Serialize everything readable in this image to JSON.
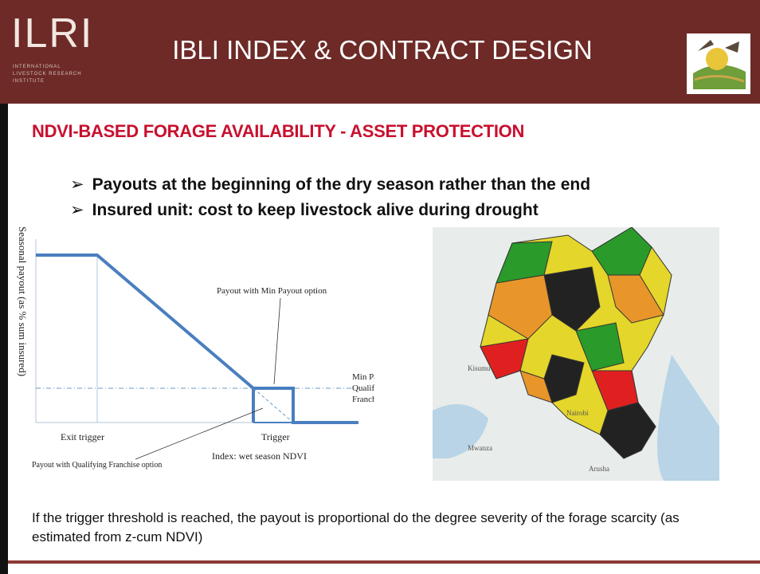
{
  "header": {
    "logo": "ILRI",
    "logo_subtext": [
      "INTERNATIONAL",
      "LIVESTOCK RESEARCH",
      "INSTITUTE"
    ],
    "title": "IBLI INDEX & CONTRACT DESIGN"
  },
  "heading": "NDVI-BASED FORAGE AVAILABILITY - ASSET PROTECTION",
  "bullets": [
    "Payouts at the beginning of the dry season rather than the end",
    "Insured unit: cost to keep livestock alive during drought"
  ],
  "diagram": {
    "y_axis_label": "Seasonal payout (as % sum insured)",
    "min_payout_option": "Payout with Min Payout option",
    "min_payout_label": [
      "Min Payout/",
      "Qualifying",
      "Franchise"
    ],
    "exit_trigger": "Exit trigger",
    "trigger": "Trigger",
    "x_axis_label": "Index: wet season NDVI",
    "franchise_option": "Payout with Qualifying Franchise option"
  },
  "map": {
    "labels": [
      "Kisumu",
      "Nairobi",
      "Mwanza",
      "Arusha"
    ]
  },
  "footer_text": "If the trigger threshold is reached, the payout is proportional do the degree severity of the forage scarcity  (as estimated from z-cum NDVI)"
}
